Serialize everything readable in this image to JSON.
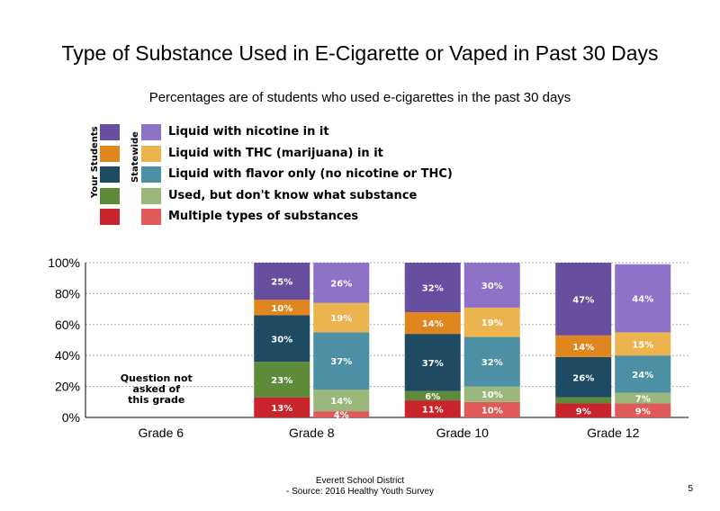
{
  "title": "Type of Substance Used in E-Cigarette or Vaped in Past 30 Days",
  "subtitle": "Percentages are of students who used e-cigarettes in the past 30 days",
  "legend": {
    "your_students_label": "Your Students",
    "statewide_label": "Statewide",
    "items": [
      {
        "label": "Liquid with nicotine in it",
        "color_students": "#674e9e",
        "color_state": "#8e72c8"
      },
      {
        "label": "Liquid with THC (marijuana) in it",
        "color_students": "#e0861f",
        "color_state": "#ecb44e"
      },
      {
        "label": "Liquid with flavor only (no nicotine or THC)",
        "color_students": "#1f4a63",
        "color_state": "#4d8fa5"
      },
      {
        "label": "Used, but don't know what substance",
        "color_students": "#5e8a3a",
        "color_state": "#9ab87c"
      },
      {
        "label": "Multiple types of substances",
        "color_students": "#c8242b",
        "color_state": "#e05a5a"
      }
    ]
  },
  "chart_data": {
    "type": "bar",
    "stacked": true,
    "categories": [
      "Grade 6",
      "Grade 8",
      "Grade 10",
      "Grade 12"
    ],
    "yticks": [
      "0%",
      "20%",
      "40%",
      "60%",
      "80%",
      "100%"
    ],
    "ylim": [
      0,
      100
    ],
    "note": "Question not asked of this grade",
    "note_category": "Grade 6",
    "bars": [
      {
        "category": "Grade 8",
        "group": "Your Students",
        "values": [
          13,
          23,
          30,
          10,
          25
        ],
        "labels": [
          "13%",
          "23%",
          "30%",
          "10%",
          "25%"
        ]
      },
      {
        "category": "Grade 8",
        "group": "Statewide",
        "values": [
          4,
          14,
          37,
          19,
          26
        ],
        "labels": [
          "4%",
          "14%",
          "37%",
          "19%",
          "26%"
        ]
      },
      {
        "category": "Grade 10",
        "group": "Your Students",
        "values": [
          11,
          6,
          37,
          14,
          32
        ],
        "labels": [
          "11%",
          "6%",
          "37%",
          "14%",
          "32%"
        ]
      },
      {
        "category": "Grade 10",
        "group": "Statewide",
        "values": [
          10,
          10,
          32,
          19,
          30
        ],
        "labels": [
          "10%",
          "10%",
          "32%",
          "19%",
          "30%"
        ]
      },
      {
        "category": "Grade 12",
        "group": "Your Students",
        "values": [
          9,
          4,
          26,
          14,
          47
        ],
        "labels": [
          "9%",
          "",
          "26%",
          "14%",
          "47%"
        ]
      },
      {
        "category": "Grade 12",
        "group": "Statewide",
        "values": [
          9,
          7,
          24,
          15,
          44
        ],
        "labels": [
          "9%",
          "7%",
          "24%",
          "15%",
          "44%"
        ]
      }
    ],
    "stack_order": [
      "Multiple types of substances",
      "Used, but don't know what substance",
      "Liquid with flavor only (no nicotine or THC)",
      "Liquid with THC (marijuana) in it",
      "Liquid with nicotine in it"
    ],
    "grid": true
  },
  "footer": {
    "district": "Everett School District",
    "source": "- Source: 2016 Healthy Youth Survey",
    "page": "5"
  }
}
